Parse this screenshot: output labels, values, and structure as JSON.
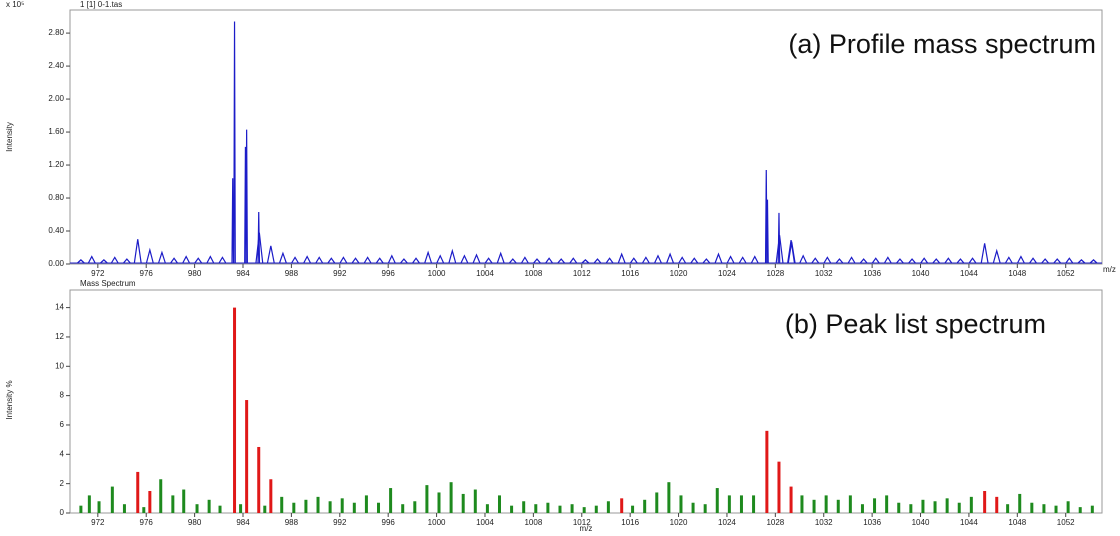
{
  "chart_data": [
    {
      "type": "profile",
      "header": "1 [1] 0-1.tas",
      "annotation": "(a) Profile mass spectrum",
      "y_scale_label": "x 10⁵",
      "ylabel": "Intensity",
      "xlabel": "m/z",
      "xlim": [
        969.7,
        1055
      ],
      "ylim": [
        0,
        3.08
      ],
      "xticks": [
        972,
        976,
        980,
        984,
        988,
        992,
        996,
        1000,
        1004,
        1008,
        1012,
        1016,
        1020,
        1024,
        1028,
        1032,
        1036,
        1040,
        1044,
        1048,
        1052
      ],
      "yticks": [
        {
          "value": 0,
          "label": "0.00"
        },
        {
          "value": 0.4,
          "label": "0.40"
        },
        {
          "value": 0.8,
          "label": "0.80"
        },
        {
          "value": 1.2,
          "label": "1.20"
        },
        {
          "value": 1.6,
          "label": "1.60"
        },
        {
          "value": 2.0,
          "label": "2.00"
        },
        {
          "value": 2.4,
          "label": "2.40"
        },
        {
          "value": 2.8,
          "label": "2.80"
        }
      ],
      "series": [
        {
          "color": "#1c1cc8",
          "x": [
            970.6,
            971.5,
            972.5,
            973.4,
            974.4,
            975.3,
            976.3,
            977.3,
            978.3,
            979.3,
            980.3,
            981.3,
            982.3,
            983.15,
            983.3,
            984.2,
            984.3,
            985.3,
            985.35,
            986.3,
            987.3,
            988.3,
            989.3,
            990.3,
            991.3,
            992.3,
            993.3,
            994.3,
            995.3,
            996.3,
            997.3,
            998.3,
            999.3,
            1000.3,
            1001.3,
            1002.3,
            1003.3,
            1004.3,
            1005.3,
            1006.3,
            1007.3,
            1008.3,
            1009.3,
            1010.3,
            1011.3,
            1012.3,
            1013.3,
            1014.3,
            1015.3,
            1016.3,
            1017.3,
            1018.3,
            1019.3,
            1020.3,
            1021.3,
            1022.3,
            1023.3,
            1024.3,
            1025.3,
            1026.3,
            1027.25,
            1027.35,
            1028.3,
            1028.35,
            1029.3,
            1029.35,
            1030.3,
            1031.3,
            1032.3,
            1033.3,
            1034.3,
            1035.3,
            1036.3,
            1037.3,
            1038.3,
            1039.3,
            1040.3,
            1041.3,
            1042.3,
            1043.3,
            1044.3,
            1045.3,
            1046.3,
            1047.3,
            1048.3,
            1049.3,
            1050.3,
            1051.3,
            1052.3,
            1053.3,
            1054.3
          ],
          "values": [
            0.05,
            0.09,
            0.05,
            0.08,
            0.06,
            0.3,
            0.17,
            0.14,
            0.07,
            0.09,
            0.07,
            0.09,
            0.08,
            1.04,
            2.94,
            1.42,
            1.63,
            0.63,
            0.38,
            0.22,
            0.13,
            0.08,
            0.09,
            0.08,
            0.07,
            0.08,
            0.07,
            0.08,
            0.07,
            0.1,
            0.06,
            0.07,
            0.14,
            0.1,
            0.16,
            0.1,
            0.11,
            0.07,
            0.13,
            0.06,
            0.08,
            0.06,
            0.07,
            0.06,
            0.07,
            0.05,
            0.06,
            0.07,
            0.12,
            0.07,
            0.08,
            0.1,
            0.12,
            0.08,
            0.07,
            0.06,
            0.12,
            0.09,
            0.08,
            0.09,
            1.14,
            0.78,
            0.62,
            0.35,
            0.29,
            0.27,
            0.1,
            0.07,
            0.08,
            0.06,
            0.08,
            0.06,
            0.07,
            0.08,
            0.06,
            0.06,
            0.07,
            0.06,
            0.07,
            0.06,
            0.07,
            0.25,
            0.16,
            0.08,
            0.09,
            0.07,
            0.06,
            0.06,
            0.07,
            0.05,
            0.05
          ]
        }
      ]
    },
    {
      "type": "stick",
      "header": "Mass Spectrum",
      "annotation": "(b) Peak list spectrum",
      "ylabel": "Intensity %",
      "xlabel": "m/z",
      "xlim": [
        969.7,
        1055
      ],
      "ylim": [
        0,
        15.2
      ],
      "xticks": [
        972,
        976,
        980,
        984,
        988,
        992,
        996,
        1000,
        1004,
        1008,
        1012,
        1016,
        1020,
        1024,
        1028,
        1032,
        1036,
        1040,
        1044,
        1048,
        1052
      ],
      "yticks": [
        0,
        2,
        4,
        6,
        8,
        10,
        12,
        14
      ],
      "series": [
        {
          "color": "#1e8a1e",
          "x": [
            970.6,
            971.3,
            972.1,
            973.2,
            974.2,
            975.8,
            977.2,
            978.2,
            979.1,
            980.2,
            981.2,
            982.1,
            983.8,
            985.8,
            987.2,
            988.2,
            989.2,
            990.2,
            991.2,
            992.2,
            993.2,
            994.2,
            995.2,
            996.2,
            997.2,
            998.2,
            999.2,
            1000.2,
            1001.2,
            1002.2,
            1003.2,
            1004.2,
            1005.2,
            1006.2,
            1007.2,
            1008.2,
            1009.2,
            1010.2,
            1011.2,
            1012.2,
            1013.2,
            1014.2,
            1016.2,
            1017.2,
            1018.2,
            1019.2,
            1020.2,
            1021.2,
            1022.2,
            1023.2,
            1024.2,
            1025.2,
            1026.2,
            1030.2,
            1031.2,
            1032.2,
            1033.2,
            1034.2,
            1035.2,
            1036.2,
            1037.2,
            1038.2,
            1039.2,
            1040.2,
            1041.2,
            1042.2,
            1043.2,
            1044.2,
            1047.2,
            1048.2,
            1049.2,
            1050.2,
            1051.2,
            1052.2,
            1053.2,
            1054.2
          ],
          "values": [
            0.5,
            1.2,
            0.8,
            1.8,
            0.6,
            0.4,
            2.3,
            1.2,
            1.6,
            0.6,
            0.9,
            0.5,
            0.6,
            0.5,
            1.1,
            0.7,
            0.9,
            1.1,
            0.8,
            1.0,
            0.7,
            1.2,
            0.7,
            1.7,
            0.6,
            0.8,
            1.9,
            1.4,
            2.1,
            1.3,
            1.6,
            0.6,
            1.2,
            0.5,
            0.8,
            0.6,
            0.7,
            0.5,
            0.6,
            0.4,
            0.5,
            0.8,
            0.5,
            0.9,
            1.4,
            2.1,
            1.2,
            0.7,
            0.6,
            1.7,
            1.2,
            1.2,
            1.2,
            1.2,
            0.9,
            1.2,
            0.9,
            1.2,
            0.6,
            1.0,
            1.2,
            0.7,
            0.6,
            0.9,
            0.8,
            1.0,
            0.7,
            1.1,
            0.6,
            1.3,
            0.7,
            0.6,
            0.5,
            0.8,
            0.4,
            0.5
          ]
        },
        {
          "color": "#e01818",
          "x": [
            975.3,
            976.3,
            983.3,
            984.3,
            985.3,
            986.3,
            1015.3,
            1027.3,
            1028.3,
            1029.3,
            1045.3,
            1046.3
          ],
          "values": [
            2.8,
            1.5,
            14.0,
            7.7,
            4.5,
            2.3,
            1.0,
            5.6,
            3.5,
            1.8,
            1.5,
            1.1
          ]
        }
      ]
    }
  ]
}
